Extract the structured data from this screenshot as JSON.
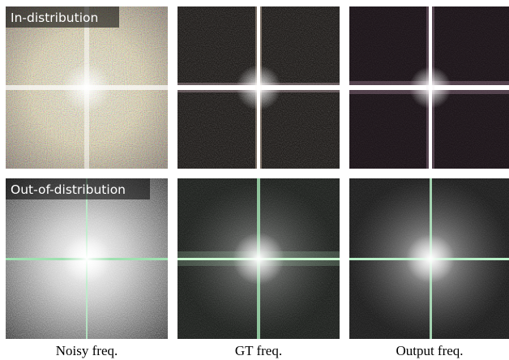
{
  "rows": [
    {
      "label": "In-distribution"
    },
    {
      "label": "Out-of-distribution"
    }
  ],
  "columns": [
    "Noisy freq.",
    "GT freq.",
    "Output freq."
  ]
}
